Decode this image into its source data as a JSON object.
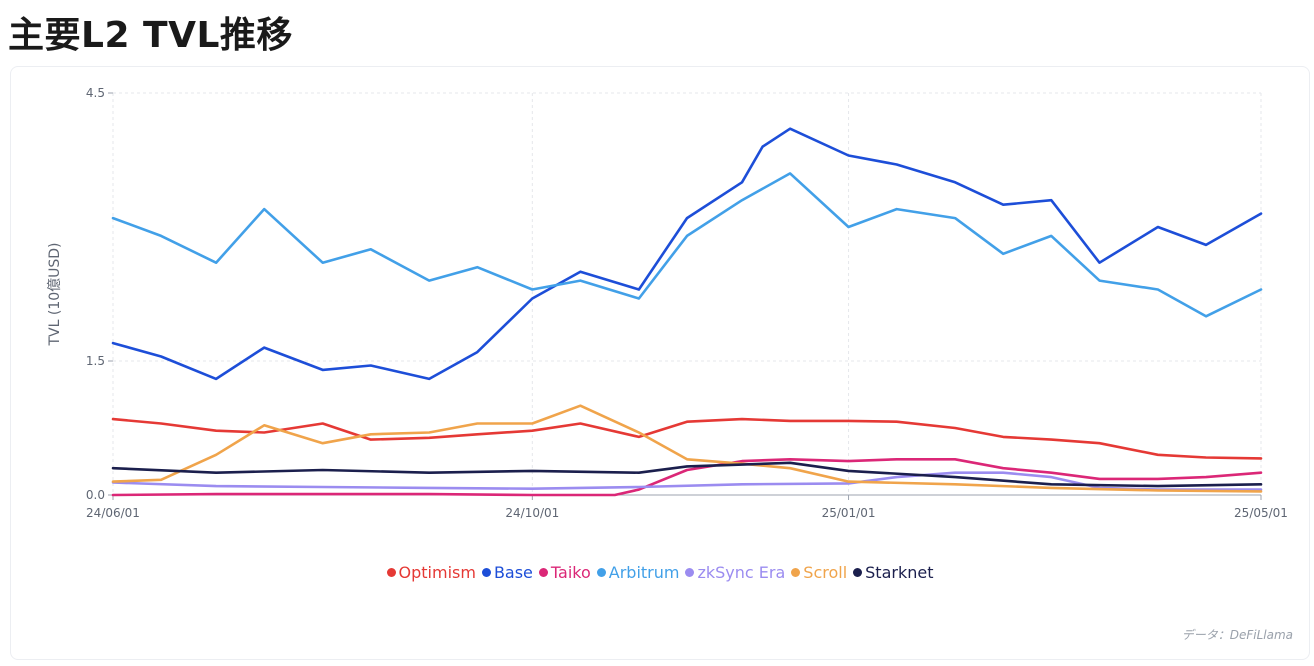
{
  "page": {
    "title": "主要L2 TVL推移"
  },
  "source_note": "データ：DeFiLlama",
  "chart_data": {
    "type": "line",
    "title": "",
    "xlabel": "",
    "ylabel": "TVL (10億USD)",
    "ylim": [
      0,
      4.5
    ],
    "yticks": [
      0.0,
      1.5,
      4.5
    ],
    "ytick_labels": [
      "0.0",
      "1.5",
      "4.5"
    ],
    "xlim": [
      "2024-06-01",
      "2025-05-01"
    ],
    "xticks": [
      "2024-06-01",
      "2024-10-01",
      "2025-01-01",
      "2025-05-01"
    ],
    "xtick_labels": [
      "24/06/01",
      "24/10/01",
      "25/01/01",
      "25/05/01"
    ],
    "grid": true,
    "legend_position": "bottom",
    "series": [
      {
        "name": "Optimism",
        "color": "#e53935",
        "x": [
          "2024-06-01",
          "2024-06-15",
          "2024-07-01",
          "2024-07-15",
          "2024-08-01",
          "2024-08-15",
          "2024-09-01",
          "2024-09-15",
          "2024-10-01",
          "2024-10-15",
          "2024-11-01",
          "2024-11-15",
          "2024-12-01",
          "2024-12-15",
          "2025-01-01",
          "2025-01-15",
          "2025-02-01",
          "2025-02-15",
          "2025-03-01",
          "2025-03-15",
          "2025-04-01",
          "2025-04-15",
          "2025-05-01"
        ],
        "values": [
          0.85,
          0.8,
          0.72,
          0.7,
          0.8,
          0.62,
          0.64,
          0.68,
          0.72,
          0.8,
          0.65,
          0.82,
          0.85,
          0.83,
          0.83,
          0.82,
          0.75,
          0.65,
          0.62,
          0.58,
          0.45,
          0.42,
          0.41
        ]
      },
      {
        "name": "Base",
        "color": "#1d4ed8",
        "x": [
          "2024-06-01",
          "2024-06-15",
          "2024-07-01",
          "2024-07-15",
          "2024-08-01",
          "2024-08-15",
          "2024-09-01",
          "2024-09-15",
          "2024-10-01",
          "2024-10-15",
          "2024-11-01",
          "2024-11-15",
          "2024-12-01",
          "2024-12-07",
          "2024-12-15",
          "2025-01-01",
          "2025-01-15",
          "2025-02-01",
          "2025-02-15",
          "2025-03-01",
          "2025-03-15",
          "2025-04-01",
          "2025-04-15",
          "2025-05-01"
        ],
        "values": [
          1.7,
          1.55,
          1.3,
          1.65,
          1.4,
          1.45,
          1.3,
          1.6,
          2.2,
          2.5,
          2.3,
          3.1,
          3.5,
          3.9,
          4.1,
          3.8,
          3.7,
          3.5,
          3.25,
          3.3,
          2.6,
          3.0,
          2.8,
          3.15
        ]
      },
      {
        "name": "Taiko",
        "color": "#db2777",
        "x": [
          "2024-06-01",
          "2024-07-01",
          "2024-08-01",
          "2024-09-01",
          "2024-10-01",
          "2024-10-25",
          "2024-11-01",
          "2024-11-15",
          "2024-12-01",
          "2024-12-15",
          "2025-01-01",
          "2025-01-15",
          "2025-02-01",
          "2025-02-15",
          "2025-03-01",
          "2025-03-15",
          "2025-04-01",
          "2025-04-15",
          "2025-05-01"
        ],
        "values": [
          0.0,
          0.01,
          0.01,
          0.01,
          0.0,
          0.0,
          0.06,
          0.28,
          0.38,
          0.4,
          0.38,
          0.4,
          0.4,
          0.3,
          0.25,
          0.18,
          0.18,
          0.2,
          0.25
        ]
      },
      {
        "name": "Arbitrum",
        "color": "#42a0e8",
        "x": [
          "2024-06-01",
          "2024-06-15",
          "2024-07-01",
          "2024-07-15",
          "2024-08-01",
          "2024-08-15",
          "2024-09-01",
          "2024-09-15",
          "2024-10-01",
          "2024-10-15",
          "2024-11-01",
          "2024-11-15",
          "2024-12-01",
          "2024-12-15",
          "2025-01-01",
          "2025-01-15",
          "2025-02-01",
          "2025-02-15",
          "2025-03-01",
          "2025-03-15",
          "2025-04-01",
          "2025-04-15",
          "2025-05-01"
        ],
        "values": [
          3.1,
          2.9,
          2.6,
          3.2,
          2.6,
          2.75,
          2.4,
          2.55,
          2.3,
          2.4,
          2.2,
          2.9,
          3.3,
          3.6,
          3.0,
          3.2,
          3.1,
          2.7,
          2.9,
          2.4,
          2.3,
          2.0,
          2.3
        ]
      },
      {
        "name": "zkSync Era",
        "color": "#9b8cf0",
        "x": [
          "2024-06-01",
          "2024-07-01",
          "2024-08-01",
          "2024-09-01",
          "2024-10-01",
          "2024-11-01",
          "2024-12-01",
          "2025-01-01",
          "2025-01-15",
          "2025-02-01",
          "2025-02-15",
          "2025-03-01",
          "2025-03-15",
          "2025-04-01",
          "2025-05-01"
        ],
        "values": [
          0.14,
          0.1,
          0.09,
          0.08,
          0.07,
          0.09,
          0.12,
          0.13,
          0.2,
          0.25,
          0.25,
          0.2,
          0.08,
          0.06,
          0.06
        ]
      },
      {
        "name": "Scroll",
        "color": "#f0a44b",
        "x": [
          "2024-06-01",
          "2024-06-15",
          "2024-07-01",
          "2024-07-15",
          "2024-08-01",
          "2024-08-15",
          "2024-09-01",
          "2024-09-15",
          "2024-10-01",
          "2024-10-15",
          "2024-11-01",
          "2024-11-15",
          "2024-12-01",
          "2024-12-15",
          "2025-01-01",
          "2025-02-01",
          "2025-03-01",
          "2025-04-01",
          "2025-05-01"
        ],
        "values": [
          0.15,
          0.17,
          0.45,
          0.78,
          0.58,
          0.68,
          0.7,
          0.8,
          0.8,
          1.0,
          0.7,
          0.4,
          0.35,
          0.3,
          0.15,
          0.12,
          0.08,
          0.05,
          0.04
        ]
      },
      {
        "name": "Starknet",
        "color": "#1b1f4d",
        "x": [
          "2024-06-01",
          "2024-07-01",
          "2024-08-01",
          "2024-09-01",
          "2024-10-01",
          "2024-11-01",
          "2024-11-15",
          "2024-12-01",
          "2024-12-15",
          "2025-01-01",
          "2025-02-01",
          "2025-03-01",
          "2025-04-01",
          "2025-05-01"
        ],
        "values": [
          0.3,
          0.25,
          0.28,
          0.25,
          0.27,
          0.25,
          0.32,
          0.34,
          0.36,
          0.27,
          0.2,
          0.12,
          0.1,
          0.12
        ]
      }
    ]
  }
}
